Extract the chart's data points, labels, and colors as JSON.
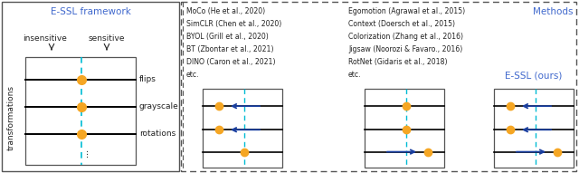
{
  "title_essl": "E-SSL framework",
  "title_methods": "Methods",
  "title_essl_ours": "E-SSL (ours)",
  "label_insensitive": "insensitive",
  "label_sensitive": "sensitive",
  "label_transformations": "transformations",
  "labels_right": [
    "flips",
    "grayscale",
    "rotations",
    "⋮"
  ],
  "left_methods": [
    "MoCo (He et al., 2020)",
    "SimCLR (Chen et al., 2020)",
    "BYOL (Grill et al., 2020)",
    "BT (Zbontar et al., 2021)",
    "DINO (Caron et al., 2021)",
    "etc."
  ],
  "right_methods": [
    "Egomotion (Agrawal et al., 2015)",
    "Context (Doersch et al., 2015)",
    "Colorization (Zhang et al., 2016)",
    "Jigsaw (Noorozi & Favaro., 2016)",
    "RotNet (Gidaris et al., 2018)",
    "etc."
  ],
  "orange": "#F5A623",
  "teal": "#00BCD4",
  "blue_arrow": "#1a3fa0",
  "dark_gray": "#222222",
  "bg_color": "#ffffff",
  "essl_blue": "#4169CD",
  "box_edge": "#555555"
}
